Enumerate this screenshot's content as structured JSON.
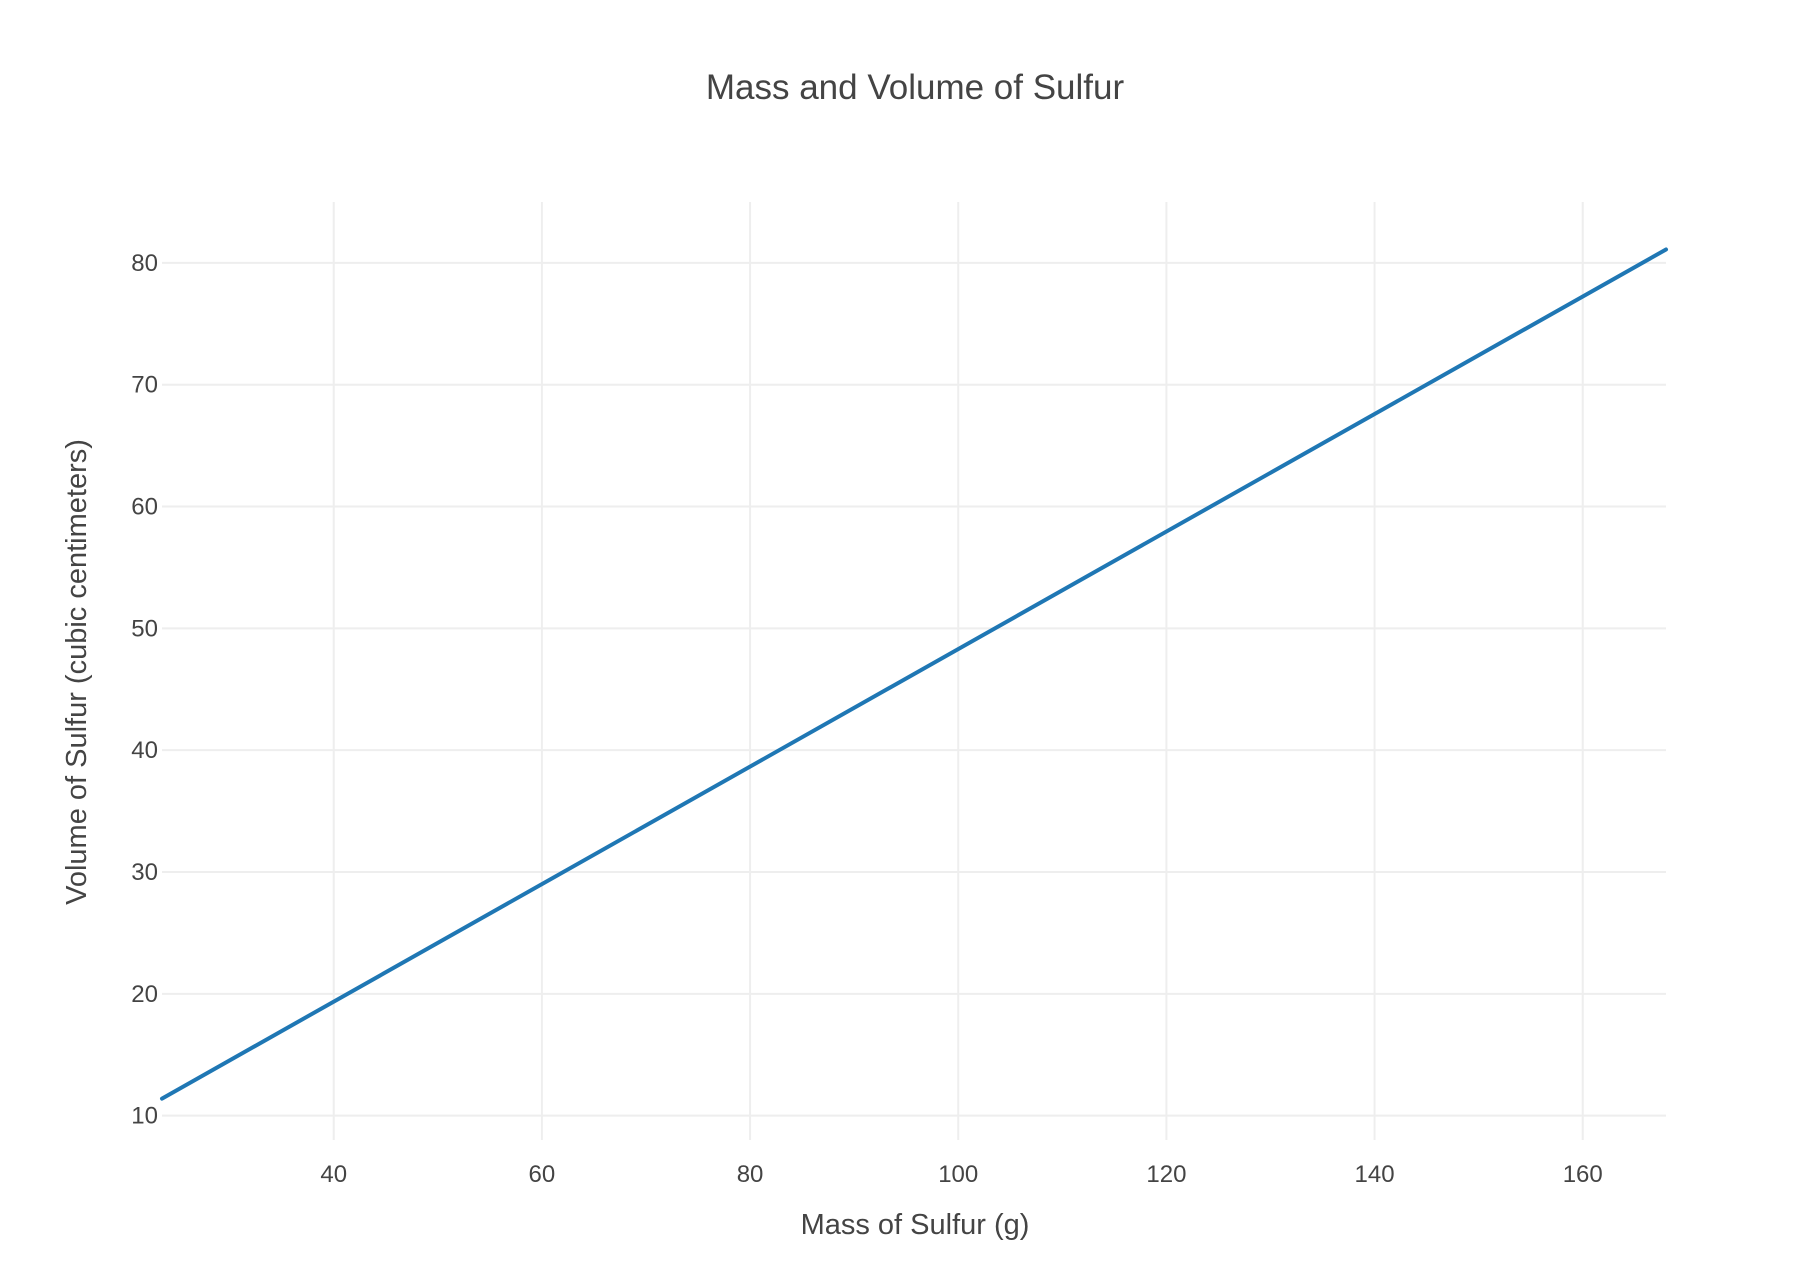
{
  "chart_data": {
    "type": "line",
    "title": "Mass and Volume of Sulfur",
    "xlabel": "Mass of Sulfur (g)",
    "ylabel": "Volume of Sulfur (cubic centimeters)",
    "xlim": [
      23.5,
      168
    ],
    "ylim": [
      8,
      85
    ],
    "x_ticks": [
      40,
      60,
      80,
      100,
      120,
      140,
      160
    ],
    "y_ticks": [
      10,
      20,
      30,
      40,
      50,
      60,
      70,
      80
    ],
    "grid": true,
    "series": [
      {
        "name": "Volume",
        "color": "#1f77b4",
        "x": [
          23.5,
          168
        ],
        "y": [
          11.4,
          81.1
        ]
      }
    ]
  }
}
